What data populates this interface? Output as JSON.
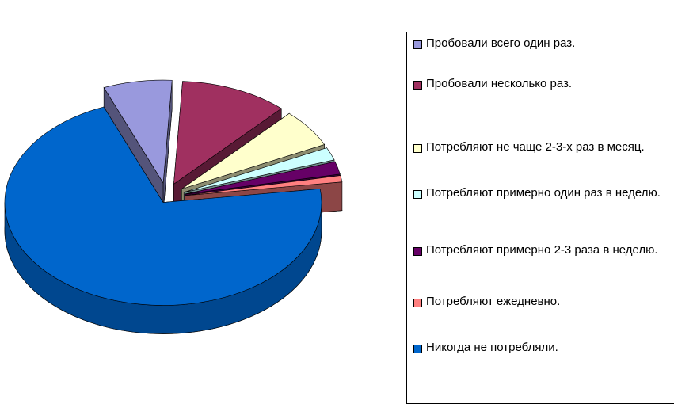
{
  "chart_data": {
    "type": "pie",
    "style": "3d-exploded",
    "categories": [
      "Пробовали всего один раз.",
      "Пробовали несколько раз.",
      "Потребляют не чаще 2-3-х раз в месяц.",
      "Потребляют примерно один раз в неделю.",
      "Потребляют примерно 2-3 раза в неделю.",
      "Потребляют ежедневно.",
      "Никогда не потребляли."
    ],
    "values": [
      7,
      11,
      6,
      2,
      2,
      1,
      71
    ],
    "colors": [
      "#9999dd",
      "#a03060",
      "#ffffcc",
      "#ccffff",
      "#660066",
      "#ff8080",
      "#0066cc"
    ],
    "legend": "right"
  }
}
